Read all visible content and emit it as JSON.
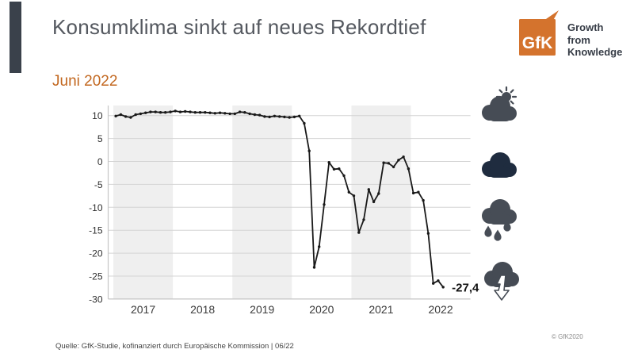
{
  "slide": {
    "title": "Konsumklima sinkt auf neues Rekordtief",
    "subtitle": "Juni 2022",
    "source": "Quelle: GfK-Studie, kofinanziert durch Europäische Kommission | 06/22",
    "copyright": "© GfK2020",
    "accent_color": "#3A414B",
    "title_color": "#54585F",
    "subtitle_color": "#C2671F"
  },
  "logo": {
    "text": "GfK",
    "tagline": [
      "Growth",
      "from",
      "Knowledge"
    ],
    "color": "#D4732D"
  },
  "icons": [
    {
      "name": "sun-behind-cloud",
      "color": "#464C55"
    },
    {
      "name": "cloud",
      "color": "#1F2C3F"
    },
    {
      "name": "rain-cloud",
      "color": "#474D56"
    },
    {
      "name": "cloud-arrow-down",
      "color": "#454B54"
    }
  ],
  "chart_data": {
    "type": "line",
    "title": "",
    "xlabel": "",
    "ylabel": "",
    "x_interval": "monthly",
    "x_start": "2017-01",
    "x_end": "2022-07",
    "x_tick_labels": [
      "2017",
      "2018",
      "2019",
      "2020",
      "2021",
      "2022"
    ],
    "y_ticks": [
      10,
      5,
      0,
      -5,
      -10,
      -15,
      -20,
      -25,
      -30
    ],
    "ylim": [
      -30,
      12.3
    ],
    "grid": true,
    "legend": false,
    "shaded_year_bands": [
      "2017",
      "2019",
      "2021"
    ],
    "band_color": "#efefef",
    "series": [
      {
        "name": "Konsumklima",
        "color": "#191919",
        "values": [
          9.9,
          10.2,
          9.8,
          9.6,
          10.2,
          10.4,
          10.6,
          10.8,
          10.8,
          10.7,
          10.7,
          10.8,
          11.0,
          10.8,
          10.9,
          10.8,
          10.7,
          10.7,
          10.7,
          10.6,
          10.5,
          10.6,
          10.5,
          10.4,
          10.4,
          10.8,
          10.7,
          10.4,
          10.2,
          10.1,
          9.8,
          9.7,
          9.9,
          9.8,
          9.7,
          9.6,
          9.7,
          9.9,
          8.3,
          2.3,
          -23.1,
          -18.6,
          -9.4,
          -0.2,
          -1.7,
          -1.6,
          -3.1,
          -6.7,
          -7.5,
          -15.5,
          -12.7,
          -6.1,
          -8.8,
          -7.0,
          -0.3,
          -0.4,
          -1.2,
          0.3,
          1.0,
          -1.6,
          -6.9,
          -6.7,
          -8.5,
          -15.7,
          -26.6,
          -26.0,
          -27.4
        ]
      }
    ],
    "end_label": "-27,4"
  }
}
